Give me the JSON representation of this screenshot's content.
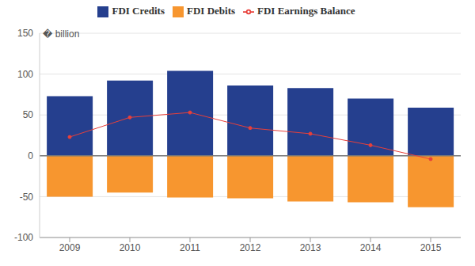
{
  "chart_data": {
    "type": "bar",
    "categories": [
      "2009",
      "2010",
      "2011",
      "2012",
      "2013",
      "2014",
      "2015"
    ],
    "series": [
      {
        "name": "FDI Credits",
        "color": "#253f8e",
        "values": [
          73,
          92,
          104,
          86,
          83,
          70,
          59
        ]
      },
      {
        "name": "FDI Debits",
        "color": "#f7962f",
        "values": [
          -50,
          -45,
          -51,
          -52,
          -56,
          -57,
          -63
        ]
      },
      {
        "name": "FDI Earnings Balance",
        "type": "line",
        "color": "#e8403a",
        "marker": "circle",
        "values": [
          23,
          47,
          53,
          34,
          27,
          13,
          -4
        ]
      }
    ],
    "y_label": "� billion",
    "ylim": [
      -100,
      150
    ],
    "yticks": [
      -100,
      -50,
      0,
      50,
      100,
      150
    ],
    "grid": true,
    "stacked": true,
    "legend": "top"
  }
}
